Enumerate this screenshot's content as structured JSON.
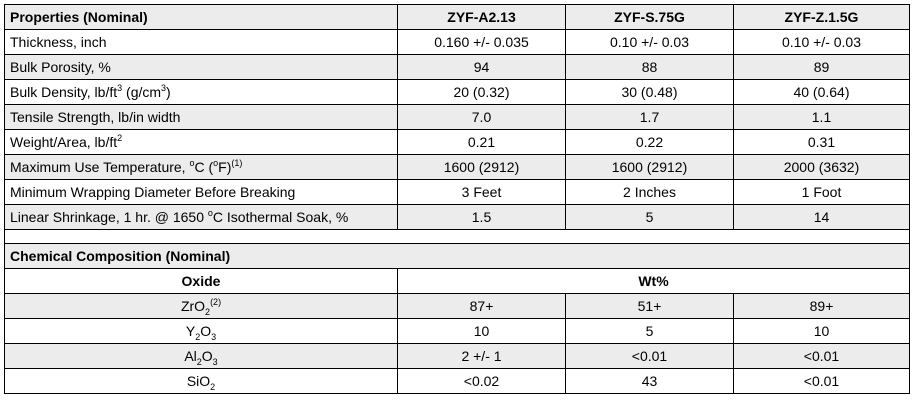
{
  "properties": {
    "header": {
      "label": "Properties (Nominal)",
      "columns": [
        "ZYF-A2.13",
        "ZYF-S.75G",
        "ZYF-Z.1.5G"
      ]
    },
    "rows": [
      {
        "label": "Thickness, inch",
        "values": [
          "0.160 +/- 0.035",
          "0.10 +/- 0.03",
          "0.10 +/- 0.03"
        ]
      },
      {
        "label": "Bulk Porosity, %",
        "values": [
          "94",
          "88",
          "89"
        ]
      },
      {
        "label_pre": "Bulk Density, lb/ft",
        "label_sup1": "3",
        "label_mid": " (g/cm",
        "label_sup2": "3",
        "label_post": ")",
        "values": [
          "20 (0.32)",
          "30 (0.48)",
          "40 (0.64)"
        ]
      },
      {
        "label": "Tensile Strength, lb/in width",
        "values": [
          "7.0",
          "1.7",
          "1.1"
        ]
      },
      {
        "label_pre": "Weight/Area, lb/ft",
        "label_sup1": "2",
        "values": [
          "0.21",
          "0.22",
          "0.31"
        ]
      },
      {
        "label_pre": "Maximum Use Temperature, ",
        "label_sup1": "o",
        "label_mid": "C (",
        "label_sup2": "o",
        "label_post": "F)",
        "label_note": "(1)",
        "values": [
          "1600 (2912)",
          "1600 (2912)",
          "2000 (3632)"
        ]
      },
      {
        "label": "Minimum Wrapping Diameter Before Breaking",
        "values": [
          "3 Feet",
          "2 Inches",
          "1 Foot"
        ]
      },
      {
        "label_pre": "Linear Shrinkage, 1 hr. @ 1650 ",
        "label_sup1": "o",
        "label_mid": "C Isothermal Soak, %",
        "values": [
          "1.5",
          "5",
          "14"
        ]
      }
    ]
  },
  "chemical": {
    "header": "Chemical Composition (Nominal)",
    "oxide_label": "Oxide",
    "wt_label": "Wt%",
    "rows": [
      {
        "parts": [
          "ZrO",
          "2",
          "",
          "(2)"
        ],
        "values": [
          "87+",
          "51+",
          "89+"
        ]
      },
      {
        "parts": [
          "Y",
          "2",
          "O",
          "3"
        ],
        "values": [
          "10",
          "5",
          "10"
        ]
      },
      {
        "parts": [
          "Al",
          "2",
          "O",
          "3"
        ],
        "values": [
          "2 +/- 1",
          "<0.01",
          "<0.01"
        ]
      },
      {
        "parts": [
          "SiO",
          "2",
          "",
          ""
        ],
        "values": [
          "<0.02",
          "43",
          "<0.01"
        ]
      }
    ]
  }
}
